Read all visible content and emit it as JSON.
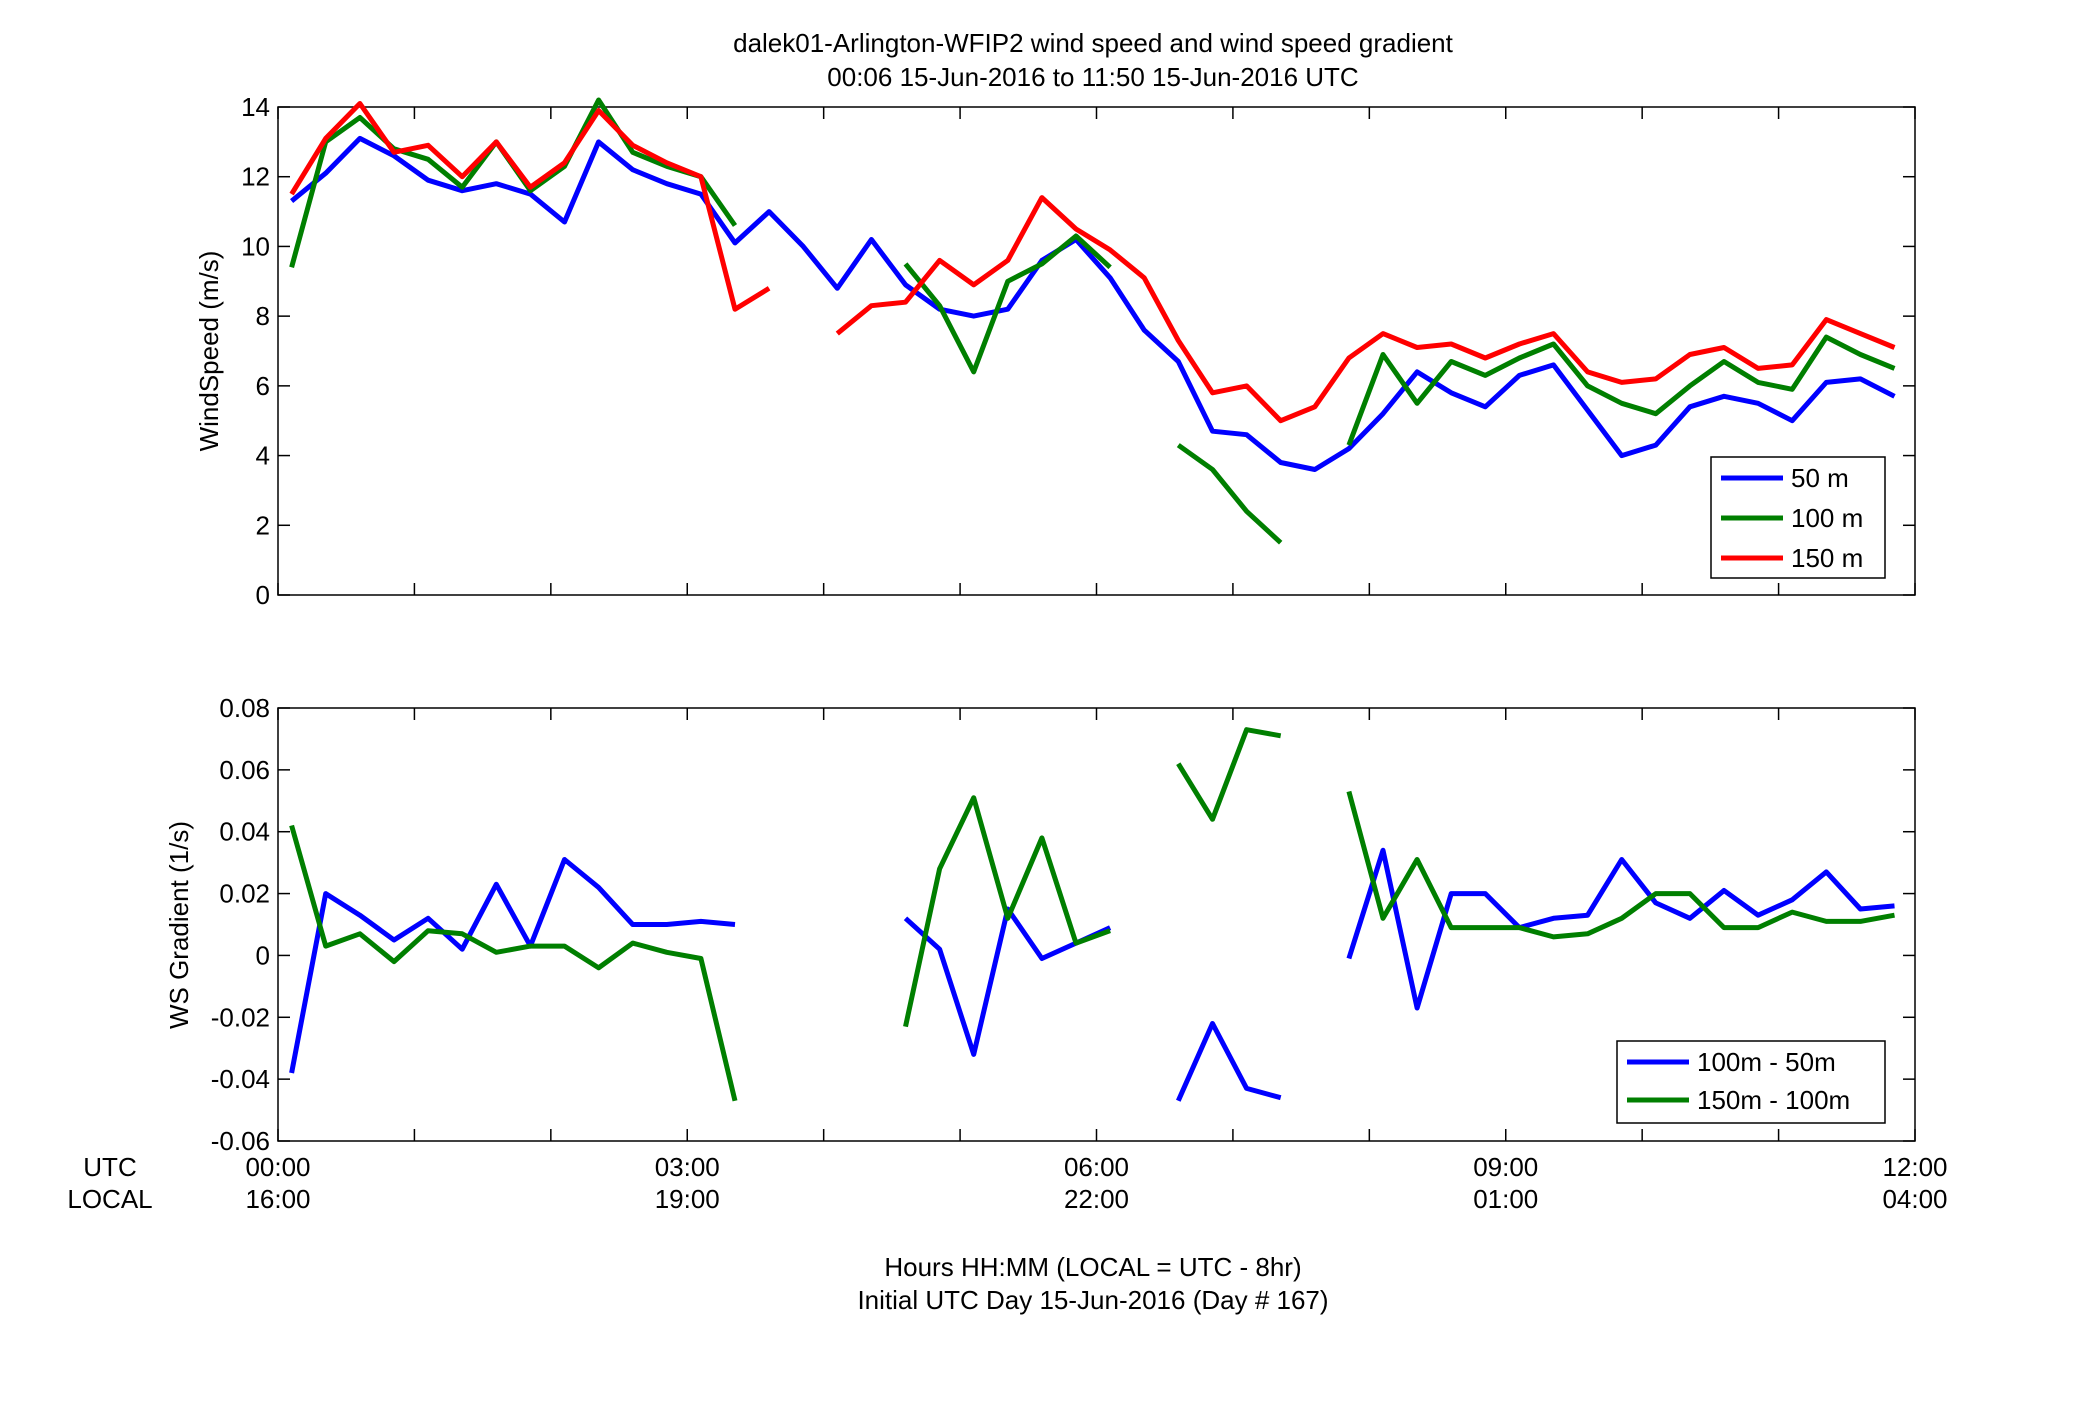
{
  "figure": {
    "title_line1": "dalek01-Arlington-WFIP2  wind speed and wind speed gradient",
    "title_line2": "00:06 15-Jun-2016 to 11:50 15-Jun-2016  UTC",
    "footer_line1": "Hours HH:MM  (LOCAL = UTC - 8hr)",
    "footer_line2": "Initial UTC Day 15-Jun-2016 (Day # 167)",
    "utc_label": "UTC",
    "local_label": "LOCAL",
    "x_tick_utc": [
      "00:00",
      "03:00",
      "06:00",
      "09:00",
      "12:00"
    ],
    "x_tick_local": [
      "16:00",
      "19:00",
      "22:00",
      "01:00",
      "04:00"
    ],
    "x_tick_hours": [
      0,
      3,
      6,
      9,
      12
    ],
    "colors": {
      "blue": "#0000ff",
      "green": "#007f00",
      "red": "#ff0000"
    }
  },
  "chart_data": [
    {
      "type": "line",
      "ylabel": "WindSpeed (m/s)",
      "xlim": [
        0,
        12
      ],
      "ylim": [
        0,
        14
      ],
      "yticks": [
        0,
        2,
        4,
        6,
        8,
        10,
        12,
        14
      ],
      "ytick_labels": [
        "0",
        "2",
        "4",
        "6",
        "8",
        "10",
        "12",
        "14"
      ],
      "grid": false,
      "legend_position": "lower-right",
      "x": [
        0.1,
        0.35,
        0.6,
        0.85,
        1.1,
        1.35,
        1.6,
        1.85,
        2.1,
        2.35,
        2.6,
        2.85,
        3.1,
        3.35,
        3.6,
        3.85,
        4.1,
        4.35,
        4.6,
        4.85,
        5.1,
        5.35,
        5.6,
        5.85,
        6.1,
        6.35,
        6.6,
        6.85,
        7.1,
        7.35,
        7.6,
        7.85,
        8.1,
        8.35,
        8.6,
        8.85,
        9.1,
        9.35,
        9.6,
        9.85,
        10.1,
        10.35,
        10.6,
        10.85,
        11.1,
        11.35,
        11.6,
        11.85
      ],
      "series": [
        {
          "name": "50 m",
          "color": "#0000ff",
          "values": [
            11.3,
            12.1,
            13.1,
            12.6,
            11.9,
            11.6,
            11.8,
            11.5,
            10.7,
            13.0,
            12.2,
            11.8,
            11.5,
            10.1,
            11.0,
            10.0,
            8.8,
            10.2,
            8.9,
            8.2,
            8.0,
            8.2,
            9.6,
            10.2,
            9.1,
            7.6,
            6.7,
            4.7,
            4.6,
            3.8,
            3.6,
            4.2,
            5.2,
            6.4,
            5.8,
            5.4,
            6.3,
            6.6,
            5.3,
            4.0,
            4.3,
            5.4,
            5.7,
            5.5,
            5.0,
            6.1,
            6.2,
            5.7
          ]
        },
        {
          "name": "100 m",
          "color": "#007f00",
          "values": [
            9.4,
            13.0,
            13.7,
            12.8,
            12.5,
            11.7,
            13.0,
            11.6,
            12.3,
            14.2,
            12.7,
            12.3,
            12.0,
            10.6,
            null,
            null,
            null,
            null,
            9.5,
            8.3,
            6.4,
            9.0,
            9.5,
            10.3,
            9.4,
            null,
            4.3,
            3.6,
            2.4,
            1.5,
            null,
            4.3,
            6.9,
            5.5,
            6.7,
            6.3,
            6.8,
            7.2,
            6.0,
            5.5,
            5.2,
            6.0,
            6.7,
            6.1,
            5.9,
            7.4,
            6.9,
            6.5
          ]
        },
        {
          "name": "150 m",
          "color": "#ff0000",
          "values": [
            11.5,
            13.1,
            14.1,
            12.7,
            12.9,
            12.0,
            13.0,
            11.7,
            12.4,
            13.9,
            12.9,
            12.4,
            12.0,
            8.2,
            8.8,
            null,
            7.5,
            8.3,
            8.4,
            9.6,
            8.9,
            9.6,
            11.4,
            10.5,
            9.9,
            9.1,
            7.3,
            5.8,
            6.0,
            5.0,
            5.4,
            6.8,
            7.5,
            7.1,
            7.2,
            6.8,
            7.2,
            7.5,
            6.4,
            6.1,
            6.2,
            6.9,
            7.1,
            6.5,
            6.6,
            7.9,
            7.5,
            7.1
          ]
        }
      ]
    },
    {
      "type": "line",
      "ylabel": "WS Gradient (1/s)",
      "xlim": [
        0,
        12
      ],
      "ylim": [
        -0.06,
        0.08
      ],
      "yticks": [
        -0.06,
        -0.04,
        -0.02,
        0,
        0.02,
        0.04,
        0.06,
        0.08
      ],
      "ytick_labels": [
        "-0.06",
        "-0.04",
        "-0.02",
        "0",
        "0.02",
        "0.04",
        "0.06",
        "0.08"
      ],
      "grid": false,
      "legend_position": "lower-right",
      "x": [
        0.1,
        0.35,
        0.6,
        0.85,
        1.1,
        1.35,
        1.6,
        1.85,
        2.1,
        2.35,
        2.6,
        2.85,
        3.1,
        3.35,
        3.6,
        3.85,
        4.1,
        4.35,
        4.6,
        4.85,
        5.1,
        5.35,
        5.6,
        5.85,
        6.1,
        6.35,
        6.6,
        6.85,
        7.1,
        7.35,
        7.6,
        7.85,
        8.1,
        8.35,
        8.6,
        8.85,
        9.1,
        9.35,
        9.6,
        9.85,
        10.1,
        10.35,
        10.6,
        10.85,
        11.1,
        11.35,
        11.6,
        11.85
      ],
      "series": [
        {
          "name": "100m - 50m",
          "color": "#0000ff",
          "values": [
            -0.038,
            0.02,
            0.013,
            0.005,
            0.012,
            0.002,
            0.023,
            0.003,
            0.031,
            0.022,
            0.01,
            0.01,
            0.011,
            0.01,
            null,
            null,
            null,
            null,
            0.012,
            0.002,
            -0.032,
            0.015,
            -0.001,
            0.004,
            0.009,
            null,
            -0.047,
            -0.022,
            -0.043,
            -0.046,
            null,
            -0.001,
            0.034,
            -0.017,
            0.02,
            0.02,
            0.009,
            0.012,
            0.013,
            0.031,
            0.017,
            0.012,
            0.021,
            0.013,
            0.018,
            0.027,
            0.015,
            0.016
          ]
        },
        {
          "name": "150m - 100m",
          "color": "#007f00",
          "values": [
            0.042,
            0.003,
            0.007,
            -0.002,
            0.008,
            0.007,
            0.001,
            0.003,
            0.003,
            -0.004,
            0.004,
            0.001,
            -0.001,
            -0.047,
            null,
            null,
            null,
            null,
            -0.023,
            0.028,
            0.051,
            0.012,
            0.038,
            0.004,
            0.008,
            null,
            0.062,
            0.044,
            0.073,
            0.071,
            null,
            0.053,
            0.012,
            0.031,
            0.009,
            0.009,
            0.009,
            0.006,
            0.007,
            0.012,
            0.02,
            0.02,
            0.009,
            0.009,
            0.014,
            0.011,
            0.011,
            0.013
          ]
        }
      ]
    }
  ]
}
